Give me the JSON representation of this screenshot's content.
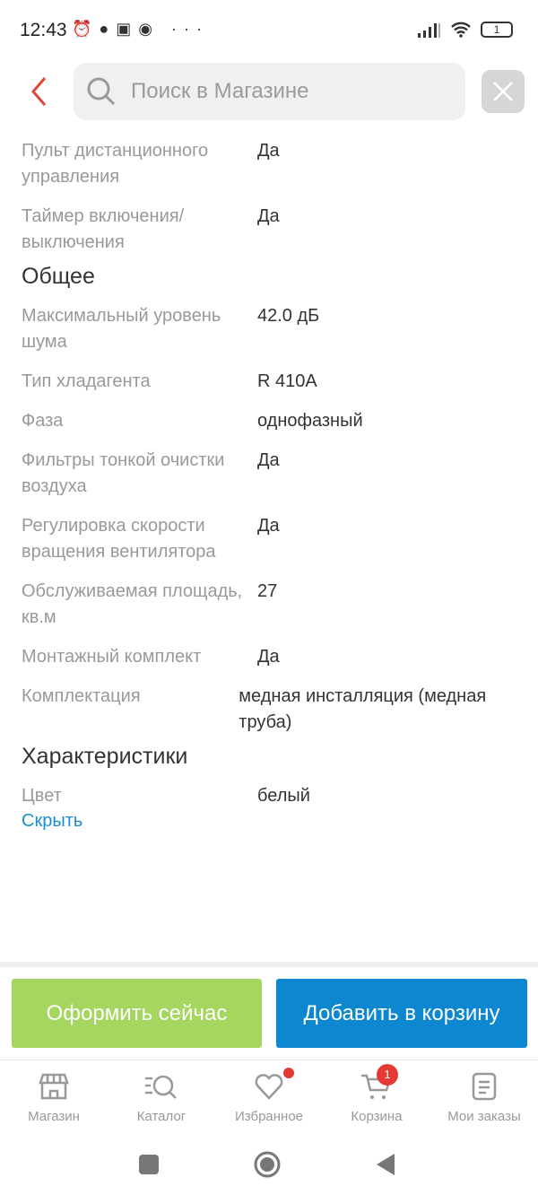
{
  "status": {
    "time": "12:43",
    "icons": [
      "alarm-icon",
      "chat-icon",
      "battery-saver-icon",
      "chrome-icon",
      "more-icon"
    ],
    "battery": "1"
  },
  "search": {
    "placeholder": "Поиск в Магазине"
  },
  "specs": [
    {
      "type": "row",
      "label": "Пульт дистанционного управления",
      "value": "Да"
    },
    {
      "type": "row",
      "label": "Таймер включения/ выключения",
      "value": "Да"
    },
    {
      "type": "header",
      "label": "Общее"
    },
    {
      "type": "row",
      "label": "Максимальный уровень шума",
      "value": "42.0 дБ"
    },
    {
      "type": "row",
      "label": "Тип хладагента",
      "value": "R 410A"
    },
    {
      "type": "row",
      "label": "Фаза",
      "value": "однофазный"
    },
    {
      "type": "row",
      "label": "Фильтры тонкой очистки воздуха",
      "value": "Да"
    },
    {
      "type": "row",
      "label": "Регулировка скорости вращения вентилятора",
      "value": "Да"
    },
    {
      "type": "row",
      "label": "Обслуживаемая площадь, кв.м",
      "value": "27"
    },
    {
      "type": "row",
      "label": "Монтажный комплект",
      "value": "Да"
    },
    {
      "type": "row",
      "label": "Комплектация",
      "value": "медная инсталляция (медная труба)"
    },
    {
      "type": "header",
      "label": "Характеристики"
    },
    {
      "type": "row",
      "label": "Цвет",
      "value": "белый"
    }
  ],
  "hide_link": "Скрыть",
  "buttons": {
    "buy_now": "Оформить сейчас",
    "add_to_cart": "Добавить в корзину"
  },
  "nav": [
    {
      "label": "Магазин",
      "icon": "store-icon"
    },
    {
      "label": "Каталог",
      "icon": "catalog-search-icon"
    },
    {
      "label": "Избранное",
      "icon": "heart-icon",
      "dot": true
    },
    {
      "label": "Корзина",
      "icon": "cart-icon",
      "badge": "1"
    },
    {
      "label": "Мои заказы",
      "icon": "orders-icon"
    }
  ],
  "colors": {
    "accent_green": "#a5d65f",
    "accent_blue": "#0c87d0",
    "back_red": "#e0473a",
    "badge_red": "#e53935",
    "link": "#1a8fd0"
  }
}
